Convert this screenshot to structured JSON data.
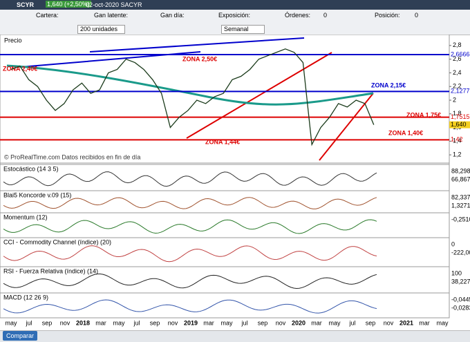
{
  "titlebar": {
    "symbol": "SCYR",
    "quote": "1,640 (+2,50%)",
    "date_name": "02-oct-2020  SACYR"
  },
  "toolbar": {
    "fields": [
      "Cartera:",
      "Gan latente:",
      "Gan día:",
      "Exposición:",
      "Órdenes:",
      "Posición:"
    ],
    "orders": "0",
    "position": "0",
    "quantity": "200 unidades",
    "period": "Semanal"
  },
  "price_panel": {
    "title": "Precio",
    "ylim": [
      1.08,
      2.94
    ],
    "yticks": [
      {
        "value": 2.8,
        "label": "2,8"
      },
      {
        "value": 2.6,
        "label": "2,6"
      },
      {
        "value": 2.4,
        "label": "2,4"
      },
      {
        "value": 2.2,
        "label": "2,2"
      },
      2,
      {
        "value": 1.8,
        "label": "1,8"
      },
      {
        "value": 1.6,
        "label": "1,6"
      },
      {
        "value": 1.4,
        "label": "1,4"
      },
      {
        "value": 1.2,
        "label": "1,2"
      }
    ],
    "levels": [
      {
        "value": 2.6666,
        "label": "2,6666",
        "color": "#0000cc"
      },
      {
        "value": 2.1277,
        "label": "2,1277",
        "color": "#0000cc"
      },
      {
        "value": 1.7515,
        "label": "1,7515",
        "color": "#dd0000"
      },
      {
        "value": 1.42,
        "label": "1,42",
        "color": "#dd0000"
      }
    ],
    "last": {
      "value": 1.64,
      "label": "1,640"
    },
    "zones": [
      "ZONA 2,40€",
      "ZONA 2,50€",
      "ZONA 2,15€",
      "ZONA 1,75€",
      "ZONA 1,40€",
      "ZONA 1,44€"
    ],
    "price": [
      2.45,
      2.5,
      2.3,
      2.2,
      2.0,
      1.85,
      1.95,
      2.15,
      2.25,
      2.1,
      2.15,
      2.4,
      2.45,
      2.6,
      2.55,
      2.45,
      2.3,
      2.1,
      1.6,
      1.75,
      1.85,
      2.0,
      1.95,
      2.05,
      2.1,
      2.3,
      2.35,
      2.45,
      2.6,
      2.65,
      2.7,
      2.75,
      2.7,
      2.55,
      1.35,
      1.6,
      1.75,
      1.95,
      1.9,
      2.0,
      1.95,
      1.64
    ],
    "watermark": "© ProRealTime.com  Datos recibidos en fin de día"
  },
  "sub_panels": [
    {
      "title": "Estocástico (14 3 5)",
      "labels": [
        "88,298",
        "66,867"
      ]
    },
    {
      "title": "Blai5 Koncorde v.09 (15)",
      "labels": [
        "82,337",
        "1,3271"
      ]
    },
    {
      "title": "Momentum (12)",
      "labels": [
        "-0,2510"
      ]
    },
    {
      "title": "CCI - Commodity Channel (índice) (20)",
      "labels": [
        "0",
        "-222,00"
      ]
    },
    {
      "title": "RSI - Fuerza Relativa (índice) (14)",
      "labels": [
        "100",
        "38,227"
      ]
    },
    {
      "title": "MACD (12 26 9)",
      "labels": [
        "-0,0445",
        "-0,0283"
      ]
    }
  ],
  "x_axis": [
    "may",
    "jul",
    "sep",
    "nov",
    "2018",
    "mar",
    "may",
    "jul",
    "sep",
    "nov",
    "2019",
    "mar",
    "may",
    "jul",
    "sep",
    "nov",
    "2020",
    "mar",
    "may",
    "jul",
    "sep",
    "nov",
    "2021",
    "mar",
    "may"
  ],
  "footer": {
    "compare": "Comparar"
  }
}
